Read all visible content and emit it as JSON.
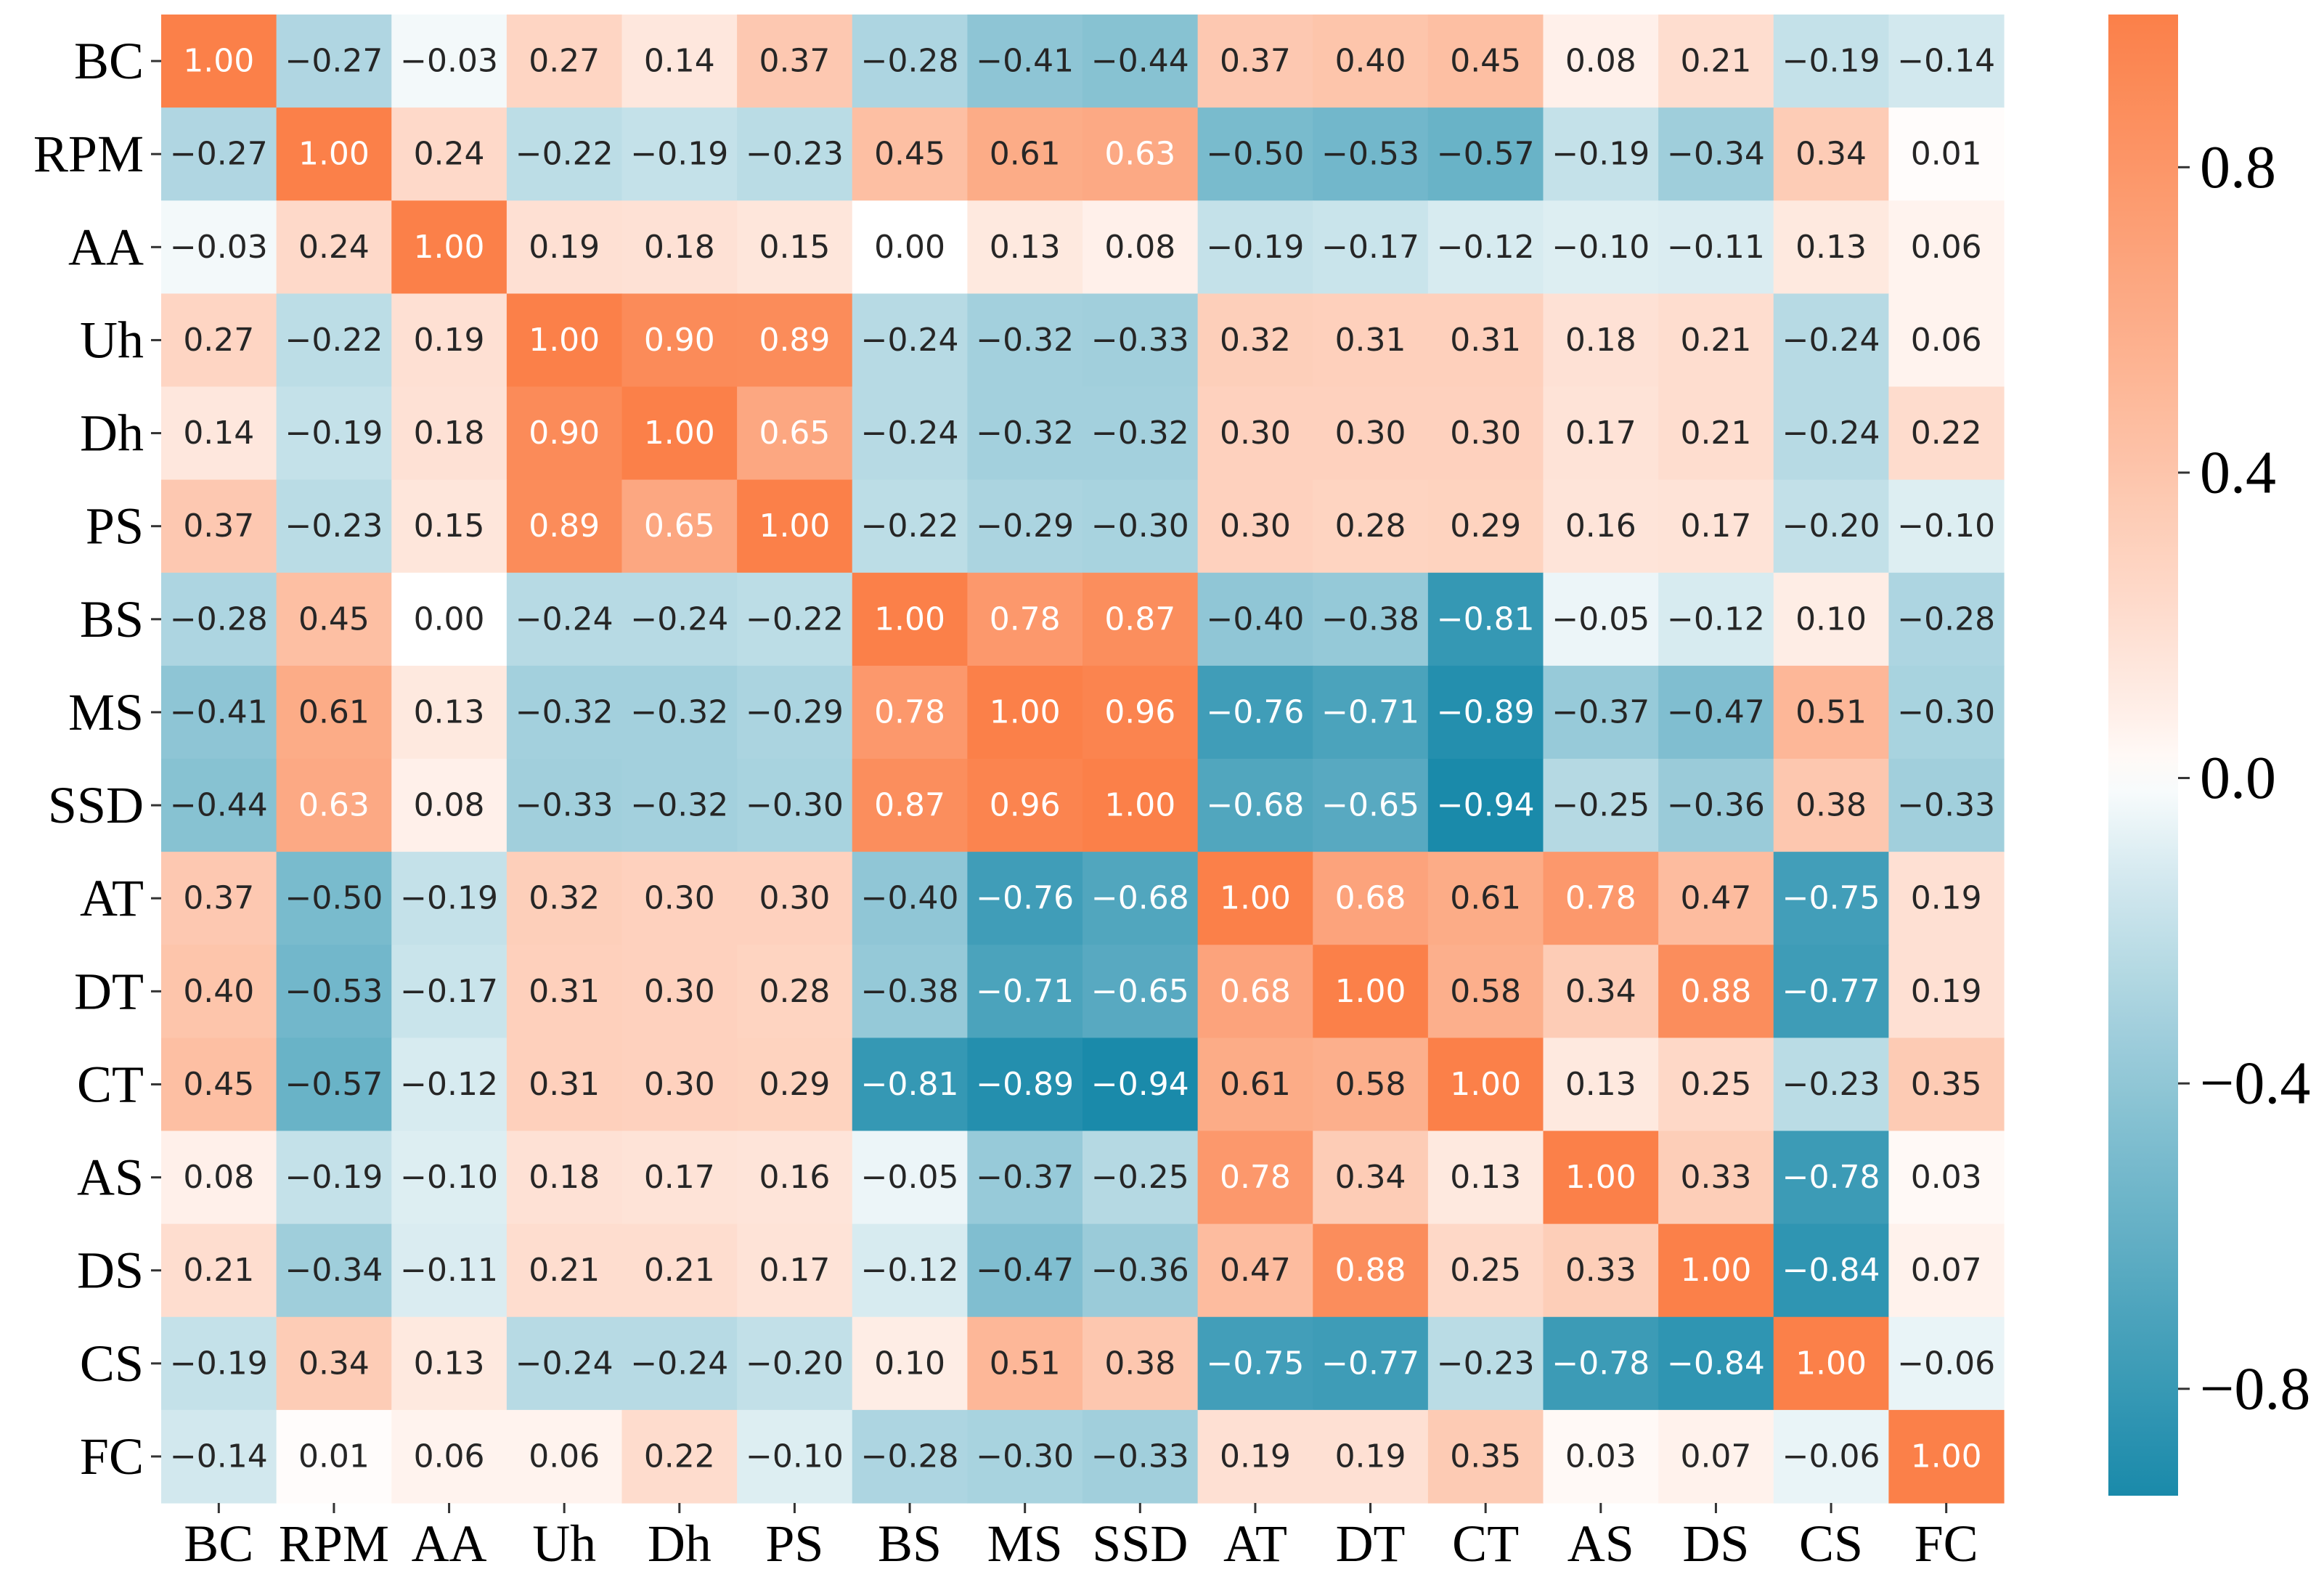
{
  "chart_data": {
    "type": "heatmap",
    "title": "",
    "xlabel": "",
    "ylabel": "",
    "labels": [
      "BC",
      "RPM",
      "AA",
      "Uh",
      "Dh",
      "PS",
      "BS",
      "MS",
      "SSD",
      "AT",
      "DT",
      "CT",
      "AS",
      "DS",
      "CS",
      "FC"
    ],
    "values": [
      [
        1.0,
        -0.27,
        -0.03,
        0.27,
        0.14,
        0.37,
        -0.28,
        -0.41,
        -0.44,
        0.37,
        0.4,
        0.45,
        0.08,
        0.21,
        -0.19,
        -0.14
      ],
      [
        -0.27,
        1.0,
        0.24,
        -0.22,
        -0.19,
        -0.23,
        0.45,
        0.61,
        0.63,
        -0.5,
        -0.53,
        -0.57,
        -0.19,
        -0.34,
        0.34,
        0.01
      ],
      [
        -0.03,
        0.24,
        1.0,
        0.19,
        0.18,
        0.15,
        0.0,
        0.13,
        0.08,
        -0.19,
        -0.17,
        -0.12,
        -0.1,
        -0.11,
        0.13,
        0.06
      ],
      [
        0.27,
        -0.22,
        0.19,
        1.0,
        0.9,
        0.89,
        -0.24,
        -0.32,
        -0.33,
        0.32,
        0.31,
        0.31,
        0.18,
        0.21,
        -0.24,
        0.06
      ],
      [
        0.14,
        -0.19,
        0.18,
        0.9,
        1.0,
        0.65,
        -0.24,
        -0.32,
        -0.32,
        0.3,
        0.3,
        0.3,
        0.17,
        0.21,
        -0.24,
        0.22
      ],
      [
        0.37,
        -0.23,
        0.15,
        0.89,
        0.65,
        1.0,
        -0.22,
        -0.29,
        -0.3,
        0.3,
        0.28,
        0.29,
        0.16,
        0.17,
        -0.2,
        -0.1
      ],
      [
        -0.28,
        0.45,
        0.0,
        -0.24,
        -0.24,
        -0.22,
        1.0,
        0.78,
        0.87,
        -0.4,
        -0.38,
        -0.81,
        -0.05,
        -0.12,
        0.1,
        -0.28
      ],
      [
        -0.41,
        0.61,
        0.13,
        -0.32,
        -0.32,
        -0.29,
        0.78,
        1.0,
        0.96,
        -0.76,
        -0.71,
        -0.89,
        -0.37,
        -0.47,
        0.51,
        -0.3
      ],
      [
        -0.44,
        0.63,
        0.08,
        -0.33,
        -0.32,
        -0.3,
        0.87,
        0.96,
        1.0,
        -0.68,
        -0.65,
        -0.94,
        -0.25,
        -0.36,
        0.38,
        -0.33
      ],
      [
        0.37,
        -0.5,
        -0.19,
        0.32,
        0.3,
        0.3,
        -0.4,
        -0.76,
        -0.68,
        1.0,
        0.68,
        0.61,
        0.78,
        0.47,
        -0.75,
        0.19
      ],
      [
        0.4,
        -0.53,
        -0.17,
        0.31,
        0.3,
        0.28,
        -0.38,
        -0.71,
        -0.65,
        0.68,
        1.0,
        0.58,
        0.34,
        0.88,
        -0.77,
        0.19
      ],
      [
        0.45,
        -0.57,
        -0.12,
        0.31,
        0.3,
        0.29,
        -0.81,
        -0.89,
        -0.94,
        0.61,
        0.58,
        1.0,
        0.13,
        0.25,
        -0.23,
        0.35
      ],
      [
        0.08,
        -0.19,
        -0.1,
        0.18,
        0.17,
        0.16,
        -0.05,
        -0.37,
        -0.25,
        0.78,
        0.34,
        0.13,
        1.0,
        0.33,
        -0.78,
        0.03
      ],
      [
        0.21,
        -0.34,
        -0.11,
        0.21,
        0.21,
        0.17,
        -0.12,
        -0.47,
        -0.36,
        0.47,
        0.88,
        0.25,
        0.33,
        1.0,
        -0.84,
        0.07
      ],
      [
        -0.19,
        0.34,
        0.13,
        -0.24,
        -0.24,
        -0.2,
        0.1,
        0.51,
        0.38,
        -0.75,
        -0.77,
        -0.23,
        -0.78,
        -0.84,
        1.0,
        -0.06
      ],
      [
        -0.14,
        0.01,
        0.06,
        0.06,
        0.22,
        -0.1,
        -0.28,
        -0.3,
        -0.33,
        0.19,
        0.19,
        0.35,
        0.03,
        0.07,
        -0.06,
        1.0
      ]
    ],
    "vmin": -0.94,
    "vmax": 1.0,
    "colorbar": {
      "ticks": [
        0.8,
        0.4,
        0.0,
        -0.4,
        -0.8
      ],
      "tick_labels": [
        "0.8",
        "0.4",
        "0.0",
        "−0.4",
        "−0.8"
      ]
    },
    "colors": {
      "negative": "#1a8aaa",
      "neutral": "#ffffff",
      "positive": "#fb8049"
    }
  }
}
